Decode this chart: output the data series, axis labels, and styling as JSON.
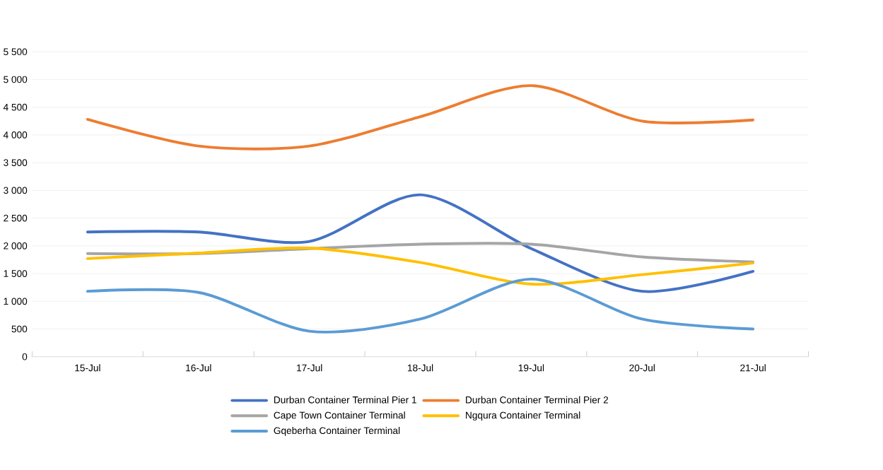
{
  "chart_data": {
    "type": "line",
    "categories": [
      "15-Jul",
      "16-Jul",
      "17-Jul",
      "18-Jul",
      "19-Jul",
      "20-Jul",
      "21-Jul"
    ],
    "series": [
      {
        "name": "Durban Container Terminal Pier 1",
        "color": "#4472c4",
        "values": [
          2250,
          2250,
          2080,
          2920,
          1950,
          1180,
          1540
        ]
      },
      {
        "name": "Durban Container Terminal Pier 2",
        "color": "#ed7d31",
        "values": [
          4280,
          3800,
          3800,
          4330,
          4890,
          4250,
          4270
        ]
      },
      {
        "name": "Cape Town Container Terminal",
        "color": "#a5a5a5",
        "values": [
          1860,
          1860,
          1950,
          2030,
          2030,
          1800,
          1710
        ]
      },
      {
        "name": "Ngqura Container Terminal",
        "color": "#ffc000",
        "values": [
          1770,
          1870,
          1960,
          1700,
          1310,
          1480,
          1690
        ]
      },
      {
        "name": "Gqeberha Container Terminal",
        "color": "#5b9bd5",
        "values": [
          1180,
          1160,
          460,
          680,
          1400,
          680,
          500
        ]
      }
    ],
    "ylim": [
      0,
      5500
    ],
    "yticks": [
      0,
      500,
      {
        "value": 1000,
        "label": "1 000"
      },
      {
        "value": 1500,
        "label": "1 500"
      },
      {
        "value": 2000,
        "label": "2 000"
      },
      {
        "value": 2500,
        "label": "2 500"
      },
      {
        "value": 3000,
        "label": "3 000"
      },
      {
        "value": 3500,
        "label": "3 500"
      },
      {
        "value": 4000,
        "label": "4 000"
      },
      {
        "value": 4500,
        "label": "4 500"
      },
      {
        "value": 5000,
        "label": "5 000"
      },
      {
        "value": 5500,
        "label": "5 500"
      }
    ],
    "grid": "y",
    "legend": "bottom",
    "marker": "none",
    "line_style": "solid"
  }
}
